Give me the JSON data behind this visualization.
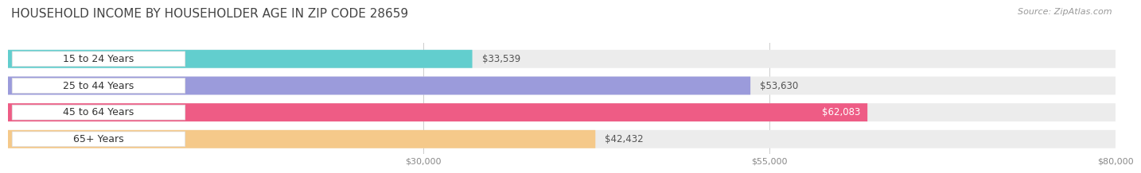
{
  "title": "HOUSEHOLD INCOME BY HOUSEHOLDER AGE IN ZIP CODE 28659",
  "source": "Source: ZipAtlas.com",
  "categories": [
    "15 to 24 Years",
    "25 to 44 Years",
    "45 to 64 Years",
    "65+ Years"
  ],
  "values": [
    33539,
    53630,
    62083,
    42432
  ],
  "labels": [
    "$33,539",
    "$53,630",
    "$62,083",
    "$42,432"
  ],
  "bar_colors": [
    "#62cece",
    "#9b9bdb",
    "#ee5c85",
    "#f5c98a"
  ],
  "bar_bg_color": "#ececec",
  "background_color": "#ffffff",
  "xmin": 0,
  "xmax": 80000,
  "xticks": [
    30000,
    55000,
    80000
  ],
  "xtick_labels": [
    "$30,000",
    "$55,000",
    "$80,000"
  ],
  "title_fontsize": 11,
  "source_fontsize": 8,
  "label_fontsize": 8.5,
  "category_fontsize": 9,
  "value_label_color_inside": "#ffffff",
  "value_label_color_outside": "#555555"
}
